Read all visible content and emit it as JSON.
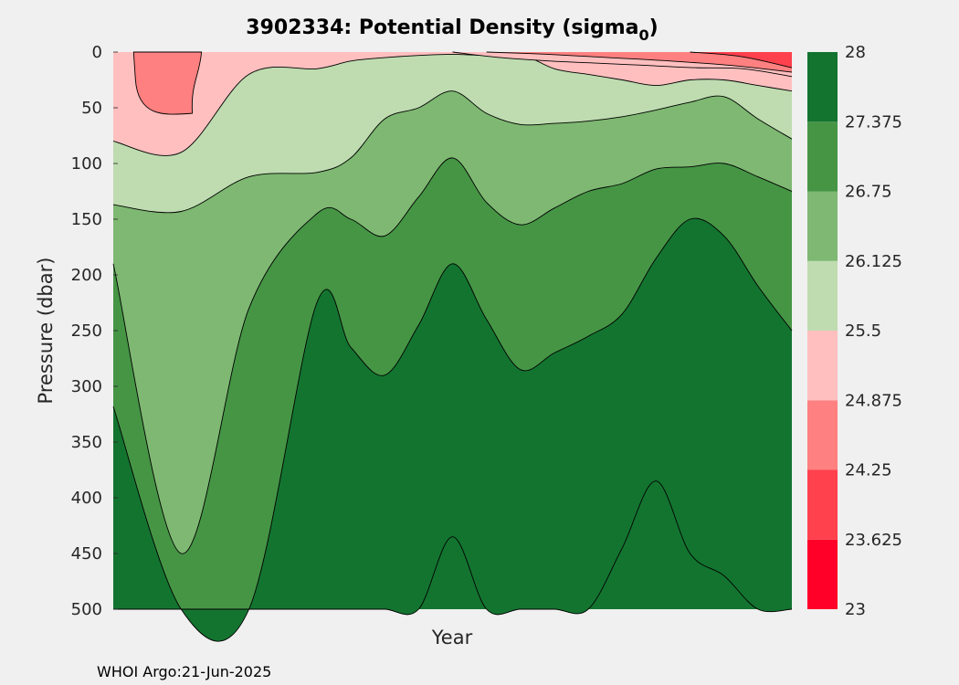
{
  "chart_data": {
    "type": "contourf",
    "title": "3902334: Potential Density (sigma",
    "title_subscript": "0",
    "title_suffix": ")",
    "xlabel": "Year",
    "ylabel": "Pressure (dbar)",
    "ylim": [
      0,
      500
    ],
    "y_reversed": true,
    "y_ticks": [
      "0",
      "50",
      "100",
      "150",
      "200",
      "250",
      "300",
      "350",
      "400",
      "450",
      "500"
    ],
    "colorbar": {
      "range": [
        23,
        28
      ],
      "ticks": [
        "23",
        "23.625",
        "24.25",
        "24.875",
        "25.5",
        "26.125",
        "26.75",
        "27.375",
        "28"
      ],
      "colors": [
        "#ff0028",
        "#ff404d",
        "#ff8080",
        "#ffbfbf",
        "#bedcb0",
        "#7eb872",
        "#459545",
        "#137430"
      ]
    },
    "profile_positions": [
      0,
      0.1,
      0.2,
      0.3,
      0.35,
      0.4,
      0.45,
      0.5,
      0.55,
      0.6,
      0.65,
      0.7,
      0.75,
      0.8,
      0.85,
      0.9,
      0.95,
      1.0
    ],
    "contours": [
      {
        "level": 25.5,
        "depths": [
          80,
          90,
          20,
          15,
          8,
          5,
          3,
          2,
          3,
          2,
          15,
          20,
          25,
          30,
          25,
          25,
          30,
          35
        ]
      },
      {
        "level": 26.125,
        "depths": [
          137,
          143,
          112,
          108,
          95,
          60,
          50,
          35,
          55,
          65,
          64,
          62,
          58,
          52,
          45,
          40,
          60,
          78
        ]
      },
      {
        "level": 26.75,
        "depths": [
          190,
          450,
          230,
          145,
          150,
          165,
          130,
          95,
          135,
          155,
          140,
          125,
          118,
          105,
          103,
          100,
          112,
          125
        ]
      },
      {
        "level": 27.375,
        "depths": [
          318,
          500,
          500,
          225,
          265,
          290,
          245,
          190,
          240,
          285,
          270,
          255,
          235,
          185,
          150,
          165,
          210,
          250
        ]
      },
      {
        "level": 28.0,
        "depths": [
          500,
          500,
          500,
          500,
          500,
          500,
          500,
          435,
          500,
          500,
          500,
          500,
          445,
          385,
          450,
          470,
          500,
          500
        ]
      }
    ],
    "surface_features": {
      "patch_24_25": {
        "x": [
          0.03,
          0.13
        ],
        "depth": [
          0,
          55
        ]
      },
      "band_24_875": {
        "x": [
          0.5,
          1.0
        ],
        "depths": [
          0,
          5,
          8,
          10,
          12,
          14,
          15,
          22
        ]
      },
      "band_24_25": {
        "x": [
          0.55,
          1.0
        ],
        "depths": [
          0,
          2,
          5,
          8,
          12,
          18
        ]
      },
      "band_23_625": {
        "x": [
          0.85,
          1.0
        ],
        "depths": [
          0,
          4,
          14
        ]
      }
    }
  },
  "footer": "WHOI Argo:21-Jun-2025"
}
